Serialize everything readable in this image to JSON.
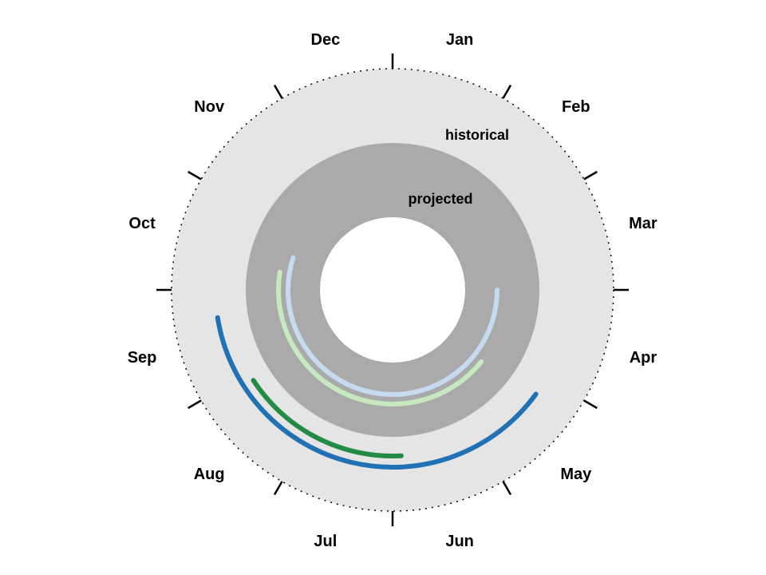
{
  "chart_data": {
    "type": "radial-timeline",
    "month_labels": [
      "Jan",
      "Feb",
      "Mar",
      "Apr",
      "May",
      "Jun",
      "Jul",
      "Aug",
      "Sep",
      "Oct",
      "Nov",
      "Dec"
    ],
    "ring_labels": {
      "outer": "historical",
      "inner": "projected"
    },
    "colors": {
      "outer_ring": "#e5e5e5",
      "inner_ring": "#aaaaaa",
      "center": "#ffffff"
    },
    "series": [
      {
        "ring": "historical",
        "color": "#2171b5",
        "start_month": 4.2,
        "end_month": 8.7
      },
      {
        "ring": "historical",
        "color": "#238b45",
        "start_month": 5.9,
        "end_month": 7.9
      },
      {
        "ring": "projected",
        "color": "#c6dbef",
        "start_month": 3.0,
        "end_month": 9.6
      },
      {
        "ring": "projected",
        "color": "#c7e9c0",
        "start_month": 4.3,
        "end_month": 9.3
      }
    ]
  }
}
